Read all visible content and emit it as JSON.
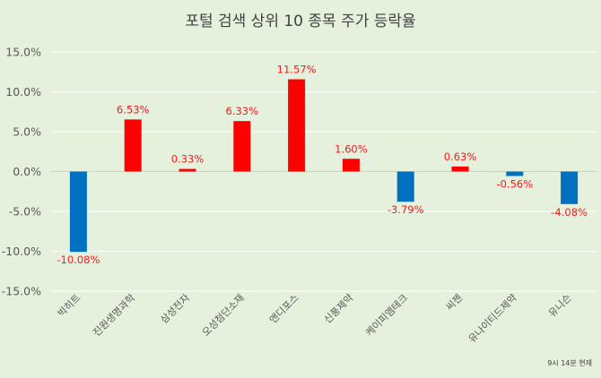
{
  "chart_data": {
    "type": "bar",
    "title": "포털 검색 상위 10 종목 주가 등락율",
    "xlabel": "",
    "ylabel": "",
    "categories": [
      "빅히트",
      "진원생명과학",
      "삼성전자",
      "오성첨단소재",
      "앤디포스",
      "신풍제약",
      "케이피엠테크",
      "씨젠",
      "유나이티드제약",
      "유니슨"
    ],
    "values": [
      -10.08,
      6.53,
      0.33,
      6.33,
      11.57,
      1.6,
      -3.79,
      0.63,
      -0.56,
      -4.08
    ],
    "data_labels": [
      "-10.08%",
      "6.53%",
      "0.33%",
      "6.33%",
      "11.57%",
      "1.60%",
      "-3.79%",
      "0.63%",
      "-0.56%",
      "-4.08%"
    ],
    "ylim": [
      -15,
      15
    ],
    "yticks": [
      15,
      10,
      5,
      0,
      -5,
      -10,
      -15
    ],
    "ytick_labels": [
      "15.0%",
      "10.0%",
      "5.0%",
      "0.0%",
      "-5.0%",
      "-10.0%",
      "-15.0%"
    ],
    "grid": true,
    "legend": "none",
    "colors": {
      "positive": "#ff0000",
      "negative": "#0070c0",
      "label": "#ff1a1a",
      "background": "#e6f1dd"
    },
    "note": "9시 14분 현재"
  }
}
